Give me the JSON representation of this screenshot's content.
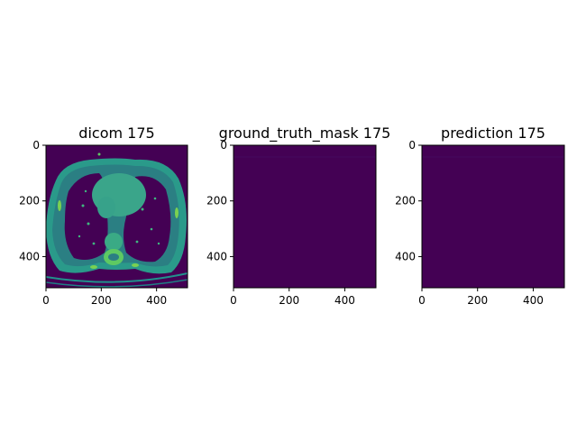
{
  "chart_data": [
    {
      "type": "heatmap",
      "title": "dicom 175",
      "image": "dicom",
      "xlim": [
        0,
        512
      ],
      "ylim": [
        512,
        0
      ],
      "xticks": [
        0,
        200,
        400
      ],
      "yticks": [
        0,
        200,
        400
      ],
      "xtick_labels": [
        "0",
        "200",
        "400"
      ],
      "ytick_labels": [
        "0",
        "200",
        "400"
      ],
      "colormap": "viridis"
    },
    {
      "type": "heatmap",
      "title": "ground_truth_mask 175",
      "image": "uniform",
      "xlim": [
        0,
        512
      ],
      "ylim": [
        512,
        0
      ],
      "xticks": [
        0,
        200,
        400
      ],
      "yticks": [
        0,
        200,
        400
      ],
      "xtick_labels": [
        "0",
        "200",
        "400"
      ],
      "ytick_labels": [
        "0",
        "200",
        "400"
      ],
      "colormap": "viridis"
    },
    {
      "type": "heatmap",
      "title": "prediction 175",
      "image": "uniform",
      "xlim": [
        0,
        512
      ],
      "ylim": [
        512,
        0
      ],
      "xticks": [
        0,
        200,
        400
      ],
      "yticks": [
        0,
        200,
        400
      ],
      "xtick_labels": [
        "0",
        "200",
        "400"
      ],
      "ytick_labels": [
        "0",
        "200",
        "400"
      ],
      "colormap": "viridis"
    }
  ],
  "colors": {
    "viridis_low": "#440154",
    "viridis_mid": "#2a8c8a",
    "viridis_teal": "#21918c",
    "viridis_green": "#5ec962",
    "viridis_high": "#fde725"
  }
}
